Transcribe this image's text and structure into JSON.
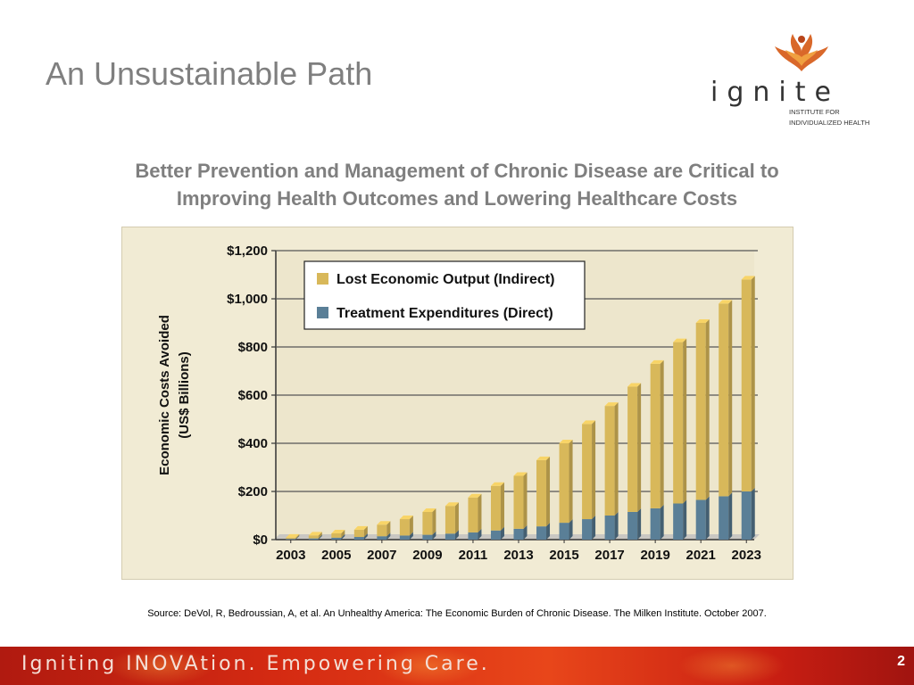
{
  "slide": {
    "title": "An Unsustainable Path",
    "subtitle_line1": "Better Prevention and Management of Chronic Disease are Critical to",
    "subtitle_line2": "Improving Health Outcomes and Lowering Healthcare Costs",
    "source": "Source:  DeVol, R, Bedroussian, A, et al.  An Unhealthy America:  The Economic Burden of Chronic Disease.  The Milken Institute. October 2007.",
    "page_number": "2"
  },
  "logo": {
    "word": "ignite",
    "sub_line1": "INSTITUTE FOR",
    "sub_line2": "INDIVIDUALIZED HEALTH"
  },
  "footer": {
    "tagline": "Igniting INOVAtion. Empowering Care."
  },
  "colors": {
    "indirect": "#d8b85a",
    "direct": "#5a7f97",
    "title_gray": "#7f7f7f",
    "panel_bg": "#f1ebd4"
  },
  "chart_data": {
    "type": "bar",
    "stacked": true,
    "ylabel_line1": "Economic Costs Avoided",
    "ylabel_line2": "(US$ Billions)",
    "ylim": [
      0,
      1200
    ],
    "yticks": [
      "$0",
      "$200",
      "$400",
      "$600",
      "$800",
      "$1,000",
      "$1,200"
    ],
    "ytick_values": [
      0,
      200,
      400,
      600,
      800,
      1000,
      1200
    ],
    "categories": [
      "2003",
      "2004",
      "2005",
      "2006",
      "2007",
      "2008",
      "2009",
      "2010",
      "2011",
      "2012",
      "2013",
      "2014",
      "2015",
      "2016",
      "2017",
      "2018",
      "2019",
      "2020",
      "2021",
      "2022",
      "2023"
    ],
    "xtick_labels": [
      "2003",
      "2005",
      "2007",
      "2009",
      "2011",
      "2013",
      "2015",
      "2017",
      "2019",
      "2021",
      "2023"
    ],
    "series": [
      {
        "name": "Treatment Expenditures (Direct)",
        "values": [
          3,
          5,
          8,
          11,
          14,
          17,
          20,
          25,
          30,
          38,
          45,
          55,
          70,
          85,
          100,
          115,
          130,
          150,
          165,
          180,
          200
        ]
      },
      {
        "name": "Lost Economic Output (Indirect)",
        "values": [
          5,
          12,
          18,
          30,
          48,
          68,
          95,
          115,
          145,
          185,
          220,
          275,
          330,
          395,
          455,
          520,
          600,
          670,
          735,
          800,
          880
        ]
      }
    ],
    "legend": {
      "position": "top-left"
    },
    "grid": true
  }
}
